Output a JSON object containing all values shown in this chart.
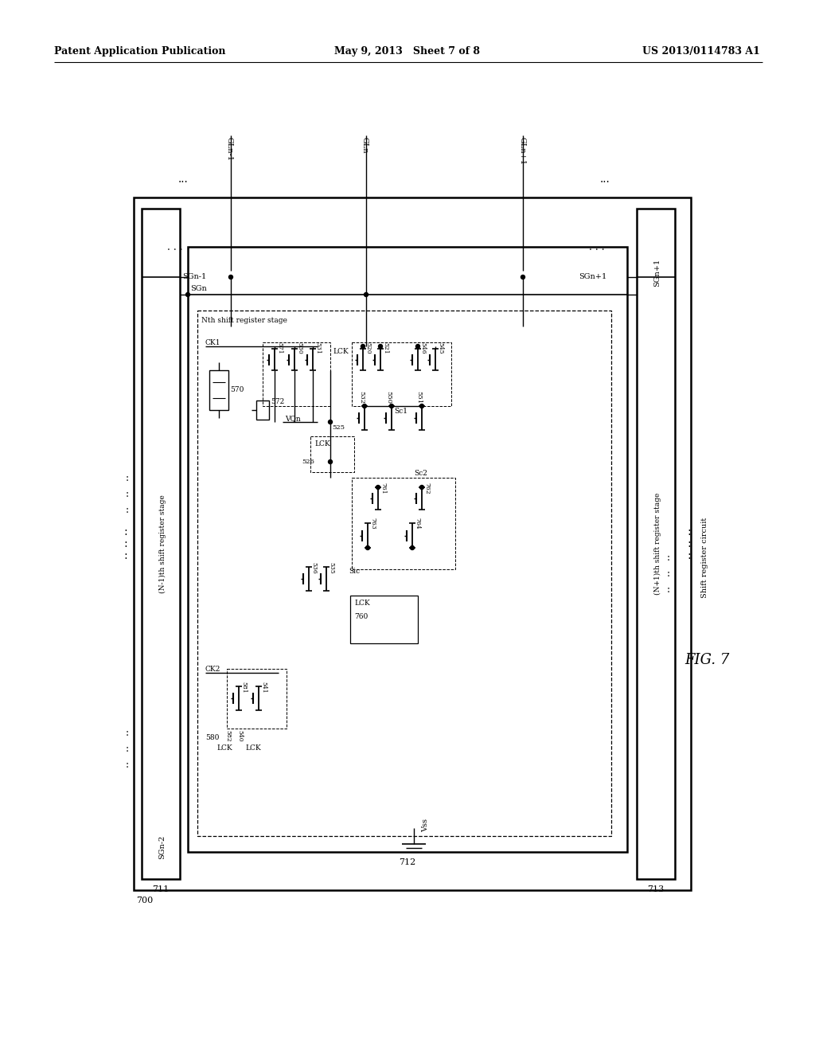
{
  "page_header_left": "Patent Application Publication",
  "page_header_mid": "May 9, 2013   Sheet 7 of 8",
  "page_header_right": "US 2013/0114783 A1",
  "fig_label": "FIG. 7",
  "fig_caption": "Shift register circuit",
  "background_color": "#ffffff"
}
